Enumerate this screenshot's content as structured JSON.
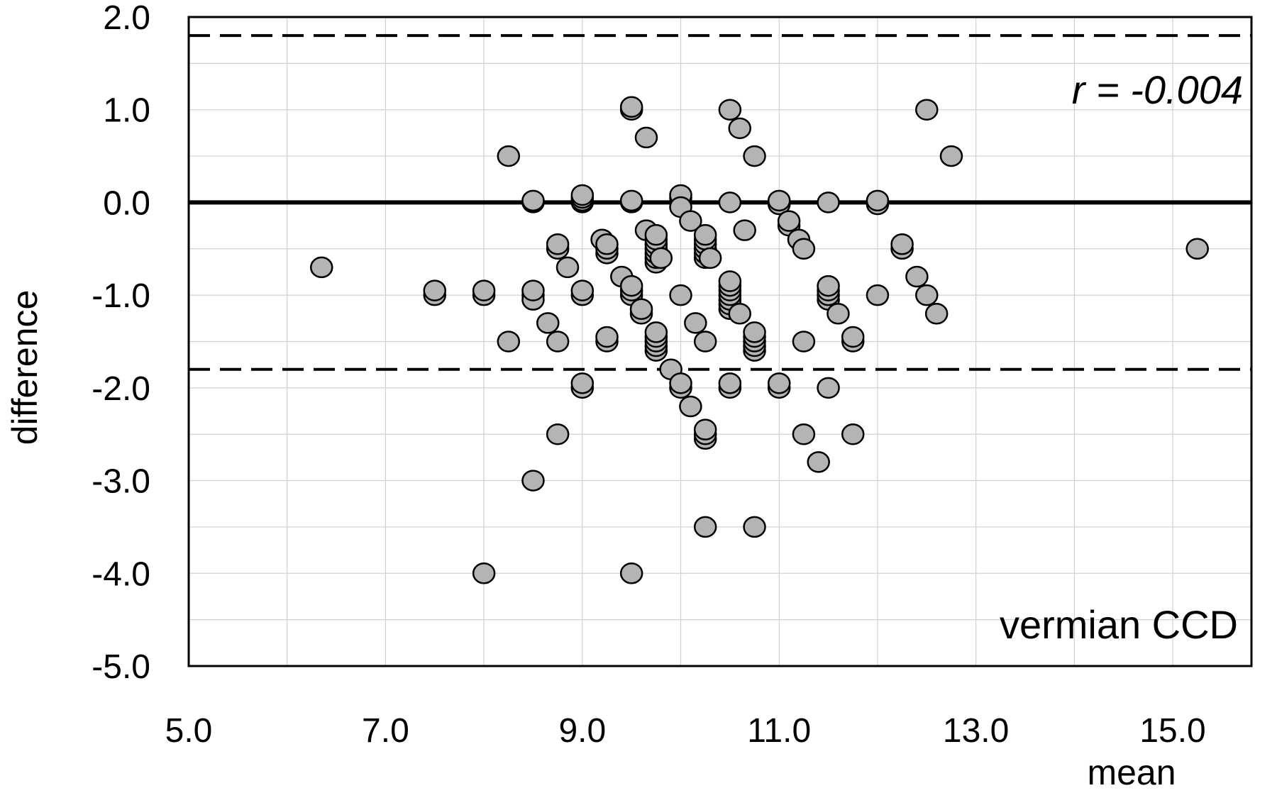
{
  "chart_data": {
    "type": "scatter",
    "title": "",
    "xlabel": "mean",
    "ylabel": "difference",
    "xlim": [
      5.0,
      15.8
    ],
    "ylim": [
      -5.0,
      2.0
    ],
    "x_ticks": [
      "5.0",
      "7.0",
      "9.0",
      "11.0",
      "13.0",
      "15.0"
    ],
    "y_ticks": [
      "2.0",
      "1.0",
      "0.0",
      "-1.0",
      "-2.0",
      "-3.0",
      "-4.0",
      "-5.0"
    ],
    "grid": true,
    "reference_lines": {
      "mean_difference": 0.0,
      "upper_limit": 1.8,
      "lower_limit": -1.8
    },
    "annotations": {
      "correlation": "r = -0.004",
      "structure": "vermian CCD"
    },
    "colors": {
      "marker_fill": "#b4b4b4",
      "marker_stroke": "#000000"
    },
    "series": [
      {
        "points": [
          [
            6.35,
            -0.7
          ],
          [
            7.5,
            -1.0
          ],
          [
            7.5,
            -0.95
          ],
          [
            8.0,
            -1.0
          ],
          [
            8.0,
            -0.95
          ],
          [
            8.0,
            -4.0
          ],
          [
            8.25,
            0.5
          ],
          [
            8.25,
            -1.5
          ],
          [
            8.5,
            0.0
          ],
          [
            8.5,
            0.02
          ],
          [
            8.5,
            -1.0
          ],
          [
            8.5,
            -1.05
          ],
          [
            8.5,
            -0.95
          ],
          [
            8.5,
            -3.0
          ],
          [
            8.65,
            -1.3
          ],
          [
            8.75,
            -0.5
          ],
          [
            8.75,
            -0.45
          ],
          [
            8.75,
            -1.5
          ],
          [
            8.75,
            -2.5
          ],
          [
            8.85,
            -0.7
          ],
          [
            9.0,
            0.0
          ],
          [
            9.0,
            0.02
          ],
          [
            9.0,
            0.05
          ],
          [
            9.0,
            0.08
          ],
          [
            9.0,
            -1.0
          ],
          [
            9.0,
            -0.95
          ],
          [
            9.0,
            -2.0
          ],
          [
            9.0,
            -1.95
          ],
          [
            9.2,
            -0.4
          ],
          [
            9.25,
            -0.55
          ],
          [
            9.25,
            -0.5
          ],
          [
            9.25,
            -0.45
          ],
          [
            9.25,
            -1.5
          ],
          [
            9.25,
            -1.45
          ],
          [
            9.4,
            -0.8
          ],
          [
            9.5,
            1.0
          ],
          [
            9.5,
            1.03
          ],
          [
            9.5,
            0.0
          ],
          [
            9.5,
            0.02
          ],
          [
            9.5,
            -1.0
          ],
          [
            9.5,
            -0.95
          ],
          [
            9.5,
            -0.9
          ],
          [
            9.5,
            -4.0
          ],
          [
            9.6,
            -1.2
          ],
          [
            9.6,
            -1.15
          ],
          [
            9.65,
            0.7
          ],
          [
            9.65,
            -0.3
          ],
          [
            9.75,
            -0.65
          ],
          [
            9.75,
            -0.6
          ],
          [
            9.75,
            -0.55
          ],
          [
            9.75,
            -0.5
          ],
          [
            9.75,
            -0.45
          ],
          [
            9.75,
            -0.4
          ],
          [
            9.75,
            -0.35
          ],
          [
            9.75,
            -1.6
          ],
          [
            9.75,
            -1.55
          ],
          [
            9.75,
            -1.5
          ],
          [
            9.75,
            -1.45
          ],
          [
            9.75,
            -1.4
          ],
          [
            9.8,
            -0.6
          ],
          [
            9.9,
            -1.8
          ],
          [
            10.0,
            0.05
          ],
          [
            10.0,
            0.08
          ],
          [
            10.0,
            -0.05
          ],
          [
            10.0,
            -1.0
          ],
          [
            10.0,
            -2.0
          ],
          [
            10.0,
            -1.95
          ],
          [
            10.1,
            -0.2
          ],
          [
            10.1,
            -2.2
          ],
          [
            10.15,
            -1.3
          ],
          [
            10.25,
            -0.6
          ],
          [
            10.25,
            -0.55
          ],
          [
            10.25,
            -0.5
          ],
          [
            10.25,
            -0.45
          ],
          [
            10.25,
            -0.4
          ],
          [
            10.25,
            -0.35
          ],
          [
            10.25,
            -1.5
          ],
          [
            10.25,
            -2.55
          ],
          [
            10.25,
            -2.5
          ],
          [
            10.25,
            -2.45
          ],
          [
            10.25,
            -3.5
          ],
          [
            10.3,
            -0.6
          ],
          [
            10.5,
            1.0
          ],
          [
            10.5,
            0.0
          ],
          [
            10.5,
            -1.15
          ],
          [
            10.5,
            -1.1
          ],
          [
            10.5,
            -1.05
          ],
          [
            10.5,
            -1.0
          ],
          [
            10.5,
            -0.95
          ],
          [
            10.5,
            -0.9
          ],
          [
            10.5,
            -0.85
          ],
          [
            10.5,
            -2.0
          ],
          [
            10.5,
            -1.95
          ],
          [
            10.6,
            0.8
          ],
          [
            10.6,
            -1.2
          ],
          [
            10.65,
            -0.3
          ],
          [
            10.75,
            0.5
          ],
          [
            10.75,
            -1.6
          ],
          [
            10.75,
            -1.55
          ],
          [
            10.75,
            -1.5
          ],
          [
            10.75,
            -1.45
          ],
          [
            10.75,
            -1.4
          ],
          [
            10.75,
            -3.5
          ],
          [
            11.0,
            -0.02
          ],
          [
            11.0,
            0.02
          ],
          [
            11.0,
            -2.0
          ],
          [
            11.0,
            -1.95
          ],
          [
            11.1,
            -0.25
          ],
          [
            11.1,
            -0.2
          ],
          [
            11.2,
            -0.4
          ],
          [
            11.25,
            -0.5
          ],
          [
            11.25,
            -1.5
          ],
          [
            11.25,
            -2.5
          ],
          [
            11.4,
            -2.8
          ],
          [
            11.5,
            0.0
          ],
          [
            11.5,
            -1.05
          ],
          [
            11.5,
            -1.0
          ],
          [
            11.5,
            -0.95
          ],
          [
            11.5,
            -0.9
          ],
          [
            11.5,
            -2.0
          ],
          [
            11.6,
            -1.2
          ],
          [
            11.75,
            -1.5
          ],
          [
            11.75,
            -1.45
          ],
          [
            11.75,
            -2.5
          ],
          [
            12.0,
            -0.02
          ],
          [
            12.0,
            0.02
          ],
          [
            12.0,
            -1.0
          ],
          [
            12.25,
            -0.5
          ],
          [
            12.25,
            -0.45
          ],
          [
            12.4,
            -0.8
          ],
          [
            12.5,
            1.0
          ],
          [
            12.5,
            -1.0
          ],
          [
            12.6,
            -1.2
          ],
          [
            12.75,
            0.5
          ],
          [
            15.25,
            -0.5
          ]
        ]
      }
    ]
  }
}
